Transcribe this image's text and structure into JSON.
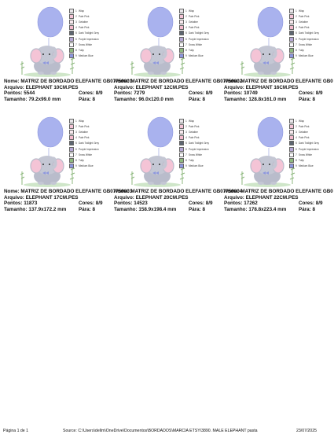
{
  "legend": [
    {
      "num": "1",
      "name": "Wisp",
      "color": "#e9e6ea"
    },
    {
      "num": "2",
      "name": "Pale Pink",
      "color": "#f4c4d6"
    },
    {
      "num": "3",
      "name": "Gelatine",
      "color": "#f8e9ee"
    },
    {
      "num": "4",
      "name": "Pale Pink",
      "color": "#f3b9cc"
    },
    {
      "num": "5",
      "name": "Dark Twilight Grey",
      "color": "#5d6570"
    },
    {
      "num": "6",
      "name": "Purple Impression",
      "color": "#b7a8d6"
    },
    {
      "num": "7",
      "name": "Snow White",
      "color": "#fafafa"
    },
    {
      "num": "8",
      "name": "Tulip",
      "color": "#8fb97f"
    },
    {
      "num": "9",
      "name": "Medium Blue",
      "color": "#8d97de"
    }
  ],
  "labels": {
    "name": "Nome:",
    "file": "Arquivo:",
    "points": "Pontos:",
    "size": "Tamanho:",
    "colors": "Cores:",
    "stops": "Pára:"
  },
  "designs": [
    {
      "name": "MATRIZ DE BORDADO ELEFANTE GB07750001",
      "file": "ELEPHANT 10CM.PES",
      "points": "5544",
      "colors": "8/9",
      "size": "79.2x99.0 mm",
      "stops": "8"
    },
    {
      "name": "MATRIZ DE BORDADO ELEFANTE GB07750002",
      "file": "ELEPHANT 12CM.PES",
      "points": "7279",
      "colors": "8/9",
      "size": "96.0x120.0 mm",
      "stops": "8"
    },
    {
      "name": "MATRIZ DE BORDADO ELEFANTE GB0",
      "file": "ELEPHANT 16CM.PES",
      "points": "10749",
      "colors": "8/9",
      "size": "128.8x161.0 mm",
      "stops": "8"
    },
    {
      "name": "MATRIZ DE BORDADO ELEFANTE GB07750003",
      "file": "ELEPHANT 17CM.PES",
      "points": "11873",
      "colors": "8/9",
      "size": "137.9x172.2 mm",
      "stops": "8"
    },
    {
      "name": "MATRIZ DE BORDADO ELEFANTE GB07750004",
      "file": "ELEPHANT 20CM.PES",
      "points": "14523",
      "colors": "8/9",
      "size": "158.9x198.4 mm",
      "stops": "8"
    },
    {
      "name": "MATRIZ DE BORDADO ELEFANTE GB0",
      "file": "ELEPHANT 22CM.PES",
      "points": "17262",
      "colors": "8/9",
      "size": "178.8x223.4 mm",
      "stops": "8"
    }
  ],
  "footer": {
    "page": "Página 1 de 1",
    "source": "Source: C:\\Users\\dellm\\OneDrive\\Documentos\\BORDADOS\\MARCIA ETSY\\3890. MALE ELEPHANT pasta",
    "date": "23/07/2025"
  }
}
